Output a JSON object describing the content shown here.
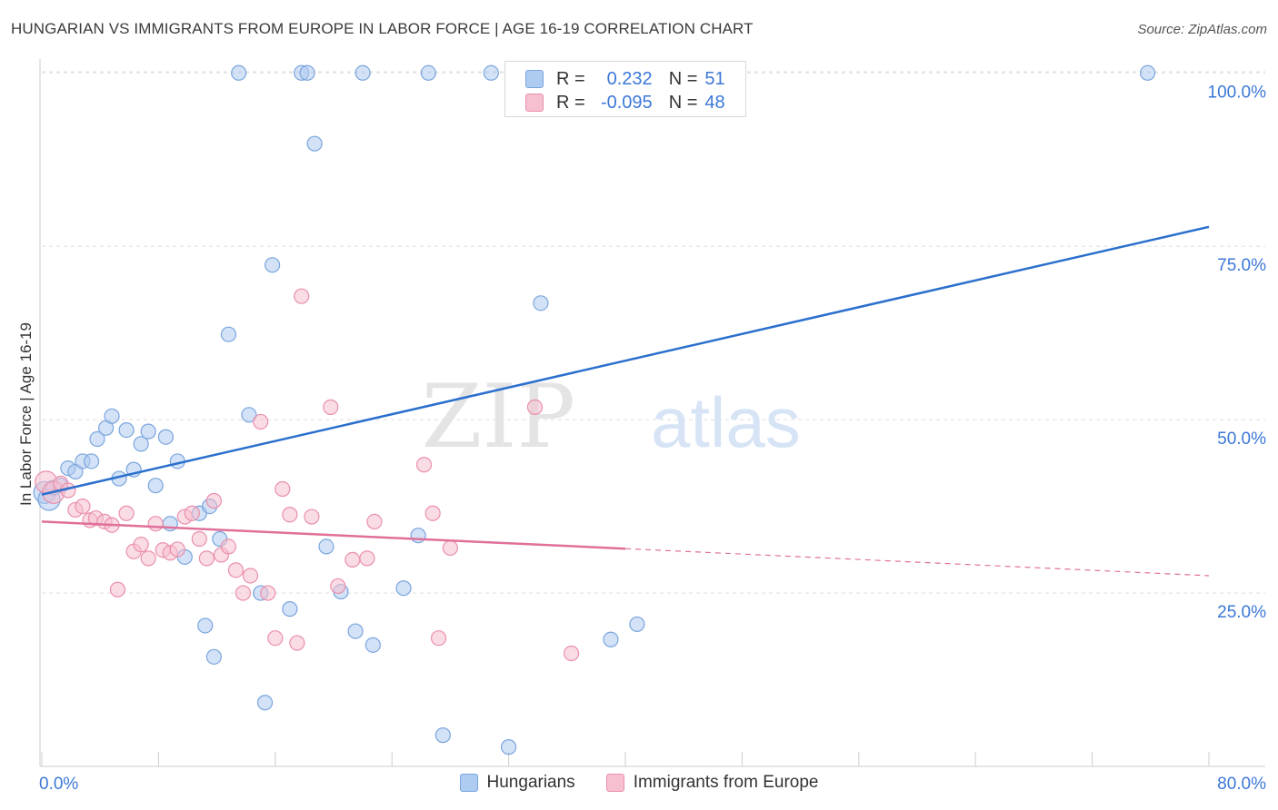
{
  "title": "HUNGARIAN VS IMMIGRANTS FROM EUROPE IN LABOR FORCE | AGE 16-19 CORRELATION CHART",
  "source": "Source: ZipAtlas.com",
  "watermark": {
    "zip": "ZIP",
    "atlas": "atlas"
  },
  "colors": {
    "blue_fill": "#aecbf1",
    "blue_stroke": "#7aa5de",
    "blue_line": "#2a6fcd",
    "blue_text": "#3c78d8",
    "pink_fill": "#f6c0d0",
    "pink_stroke": "#ea8fab",
    "pink_line": "#e0709a",
    "grid": "#dddddd",
    "axis_text": "#3c78d8"
  },
  "stats": {
    "rows": [
      {
        "r_label": "R =",
        "r_value": "0.232",
        "n_label": "N =",
        "n_value": "51"
      },
      {
        "r_label": "R =",
        "r_value": "-0.095",
        "n_label": "N =",
        "n_value": "48"
      }
    ]
  },
  "chart_data": {
    "type": "scatter",
    "title": "HUNGARIAN VS IMMIGRANTS FROM EUROPE IN LABOR FORCE | AGE 16-19 CORRELATION CHART",
    "xlabel": "",
    "ylabel": "In Labor Force | Age 16-19",
    "xlim": [
      0,
      80
    ],
    "ylim": [
      0,
      102
    ],
    "x_tick_labels": [
      "0.0%",
      "80.0%"
    ],
    "y_ticks": [
      25,
      50,
      75,
      100
    ],
    "y_tick_labels": [
      "25.0%",
      "50.0%",
      "75.0%",
      "100.0%"
    ],
    "legend": [
      "Hungarians",
      "Immigrants from Europe"
    ],
    "series": [
      {
        "name": "Hungarians",
        "color": "#aecbf1",
        "points": [
          [
            0.2,
            39.5
          ],
          [
            0.5,
            38.5
          ],
          [
            0.8,
            40.2
          ],
          [
            1.3,
            40.5
          ],
          [
            1.8,
            43.0
          ],
          [
            2.3,
            42.5
          ],
          [
            2.8,
            44.0
          ],
          [
            3.4,
            44.0
          ],
          [
            3.8,
            47.2
          ],
          [
            4.4,
            48.8
          ],
          [
            4.8,
            50.5
          ],
          [
            5.3,
            41.5
          ],
          [
            5.8,
            48.5
          ],
          [
            6.3,
            42.8
          ],
          [
            6.8,
            46.5
          ],
          [
            7.3,
            48.3
          ],
          [
            7.8,
            40.5
          ],
          [
            8.5,
            47.5
          ],
          [
            8.8,
            35.0
          ],
          [
            9.3,
            44.0
          ],
          [
            9.8,
            30.2
          ],
          [
            10.8,
            36.5
          ],
          [
            11.2,
            20.3
          ],
          [
            11.5,
            37.5
          ],
          [
            11.8,
            15.8
          ],
          [
            12.2,
            32.8
          ],
          [
            12.8,
            62.3
          ],
          [
            13.5,
            100.0
          ],
          [
            14.2,
            50.7
          ],
          [
            15.0,
            25.0
          ],
          [
            15.3,
            9.2
          ],
          [
            15.8,
            72.3
          ],
          [
            17.0,
            22.7
          ],
          [
            17.8,
            100.0
          ],
          [
            18.2,
            100.0
          ],
          [
            18.7,
            89.8
          ],
          [
            19.5,
            31.7
          ],
          [
            20.5,
            25.2
          ],
          [
            21.5,
            19.5
          ],
          [
            22.0,
            100.0
          ],
          [
            22.7,
            17.5
          ],
          [
            24.8,
            25.7
          ],
          [
            25.8,
            33.3
          ],
          [
            26.5,
            100.0
          ],
          [
            27.5,
            4.5
          ],
          [
            30.8,
            100.0
          ],
          [
            32.0,
            2.8
          ],
          [
            34.2,
            66.8
          ],
          [
            39.0,
            18.3
          ],
          [
            40.8,
            20.5
          ],
          [
            75.8,
            100.0
          ]
        ],
        "trend": {
          "x": [
            0,
            80
          ],
          "y": [
            39.2,
            77.8
          ],
          "solid_until": 80
        }
      },
      {
        "name": "Immigrants from Europe",
        "color": "#f6c0d0",
        "points": [
          [
            0.3,
            41.0
          ],
          [
            0.8,
            39.5
          ],
          [
            1.3,
            40.8
          ],
          [
            1.8,
            39.8
          ],
          [
            2.3,
            37.0
          ],
          [
            2.8,
            37.5
          ],
          [
            3.3,
            35.5
          ],
          [
            3.7,
            35.8
          ],
          [
            4.3,
            35.3
          ],
          [
            4.8,
            34.8
          ],
          [
            5.2,
            25.5
          ],
          [
            5.8,
            36.5
          ],
          [
            6.3,
            31.0
          ],
          [
            6.8,
            32.0
          ],
          [
            7.3,
            30.0
          ],
          [
            7.8,
            35.0
          ],
          [
            8.3,
            31.2
          ],
          [
            8.8,
            30.8
          ],
          [
            9.3,
            31.3
          ],
          [
            9.8,
            36.0
          ],
          [
            10.3,
            36.5
          ],
          [
            10.8,
            32.8
          ],
          [
            11.3,
            30.0
          ],
          [
            11.8,
            38.3
          ],
          [
            12.3,
            30.5
          ],
          [
            12.8,
            31.7
          ],
          [
            13.3,
            28.3
          ],
          [
            13.8,
            25.0
          ],
          [
            14.3,
            27.5
          ],
          [
            15.0,
            49.7
          ],
          [
            15.5,
            25.0
          ],
          [
            16.0,
            18.5
          ],
          [
            16.5,
            40.0
          ],
          [
            17.0,
            36.3
          ],
          [
            17.5,
            17.8
          ],
          [
            17.8,
            67.8
          ],
          [
            18.5,
            36.0
          ],
          [
            19.8,
            51.8
          ],
          [
            20.3,
            26.0
          ],
          [
            21.3,
            29.8
          ],
          [
            22.3,
            30.0
          ],
          [
            22.8,
            35.3
          ],
          [
            27.2,
            18.5
          ],
          [
            26.2,
            43.5
          ],
          [
            26.8,
            36.5
          ],
          [
            28.0,
            31.5
          ],
          [
            33.8,
            51.8
          ],
          [
            36.3,
            16.3
          ]
        ],
        "trend": {
          "x": [
            0,
            80
          ],
          "y": [
            35.3,
            27.5
          ],
          "solid_until": 40
        }
      }
    ]
  }
}
